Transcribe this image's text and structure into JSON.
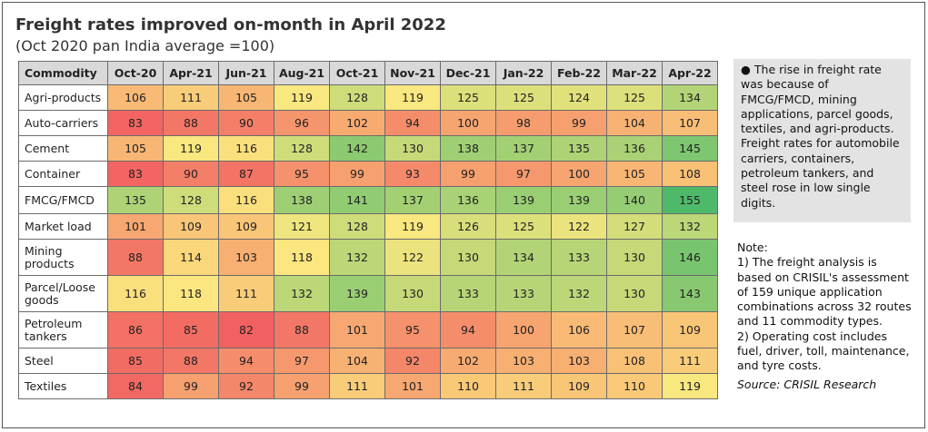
{
  "header": {
    "title": "Freight rates improved on-month in April 2022",
    "subtitle": "(Oct 2020 pan India average =100)"
  },
  "chart_data": {
    "type": "heatmap",
    "title": "Freight rates improved on-month in April 2022",
    "subtitle": "(Oct 2020 pan India average =100)",
    "row_header": "Commodity",
    "columns": [
      "Oct-20",
      "Apr-21",
      "Jun-21",
      "Aug-21",
      "Oct-21",
      "Nov-21",
      "Dec-21",
      "Jan-22",
      "Feb-22",
      "Mar-22",
      "Apr-22"
    ],
    "rows": [
      {
        "name": "Agri-products",
        "values": [
          106,
          111,
          105,
          119,
          128,
          119,
          125,
          125,
          124,
          125,
          134
        ]
      },
      {
        "name": "Auto-carriers",
        "values": [
          83,
          88,
          90,
          96,
          102,
          94,
          100,
          98,
          99,
          104,
          107
        ]
      },
      {
        "name": "Cement",
        "values": [
          105,
          119,
          116,
          128,
          142,
          130,
          138,
          137,
          135,
          136,
          145
        ]
      },
      {
        "name": "Container",
        "values": [
          83,
          90,
          87,
          95,
          99,
          93,
          99,
          97,
          100,
          105,
          108
        ]
      },
      {
        "name": "FMCG/FMCD",
        "values": [
          135,
          128,
          116,
          138,
          141,
          137,
          136,
          139,
          139,
          140,
          155
        ]
      },
      {
        "name": "Market load",
        "values": [
          101,
          109,
          109,
          121,
          128,
          119,
          126,
          125,
          122,
          127,
          132
        ]
      },
      {
        "name": "Mining products",
        "values": [
          88,
          114,
          103,
          118,
          132,
          122,
          130,
          134,
          133,
          130,
          146
        ]
      },
      {
        "name": "Parcel/Loose goods",
        "values": [
          116,
          118,
          111,
          132,
          139,
          130,
          133,
          133,
          132,
          130,
          143
        ]
      },
      {
        "name": "Petroleum tankers",
        "values": [
          86,
          85,
          82,
          88,
          101,
          95,
          94,
          100,
          106,
          107,
          109
        ]
      },
      {
        "name": "Steel",
        "values": [
          85,
          88,
          94,
          97,
          104,
          92,
          102,
          103,
          103,
          108,
          111
        ]
      },
      {
        "name": "Textiles",
        "values": [
          84,
          99,
          92,
          99,
          111,
          101,
          110,
          111,
          109,
          110,
          119
        ]
      }
    ],
    "color_scale": {
      "low": "#f26161",
      "mid": "#fbe87f",
      "high": "#4fb96a",
      "min": 82,
      "max": 155
    }
  },
  "sidebar": {
    "bullet": "●",
    "text": "The rise in freight rate was because of FMCG/FMCD, mining applications, parcel goods, textiles, and agri-products. Freight rates for automobile carriers, containers, petroleum tankers, and steel rose in low single digits."
  },
  "notes": {
    "heading": "Note:",
    "note1": "1) The freight analysis is based on CRISIL's assessment of 159 unique application combinations across 32 routes and 11 commodity types.",
    "note2": "2) Operating cost includes fuel, driver, toll, maintenance, and tyre costs.",
    "source": "Source: CRISIL Research"
  }
}
